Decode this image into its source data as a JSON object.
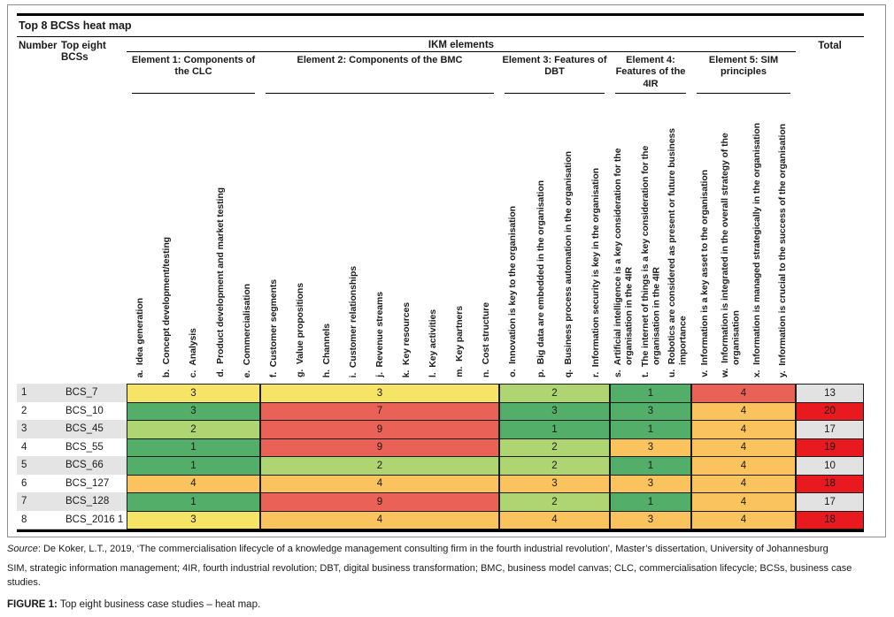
{
  "header": {
    "number_label": "Number",
    "bcs_label": "Top eight BCSs",
    "ikm_label": "IKM elements",
    "total_label": "Total"
  },
  "chart_data": {
    "type": "heatmap",
    "title": "Top 8 BCSs heat map",
    "legend_position": "none",
    "column_groups": [
      {
        "label": "Element 1: Components of the CLC",
        "columns": "a-e"
      },
      {
        "label": "Element 2: Components of the BMC",
        "columns": "f-n"
      },
      {
        "label": "Element 3: Features of DBT",
        "columns": "o-r"
      },
      {
        "label": "Element 4: Features of the 4IR",
        "columns": "s-u"
      },
      {
        "label": "Element 5: SIM principles",
        "columns": "v-y"
      }
    ],
    "columns": [
      "a.  Idea generation",
      "b.  Concept development/testing",
      "c.  Analysis",
      "d.  Product development and market testing",
      "e.  Commercialisation",
      "f.  Customer segments",
      "g.  Value propositions",
      "h.  Channels",
      "i.  Customer relationships",
      "j.  Revenue streams",
      "k.  Key resources",
      "l.  Key activities",
      "m.  Key partners",
      "n.  Cost structure",
      "o.  Innovation is key to the organisation",
      "p.  Big data are embedded in the organisation",
      "q.  Business process automation in the organisation",
      "r.  Information security is key in the organisation",
      "s.  Artificial intelligence is a key consideration for the organisation in the 4IR",
      "t.  The internet of things is a key consideration for the organisation in the 4IR",
      "u.  Robotics are considered as present or future business importance",
      "v.  Information is a key asset to the organisation",
      "w.  Information is integrated in the overall strategy of the organisation",
      "x.  Information is managed strategically in the organisation",
      "y.  Information is crucial to the success of the organisation"
    ],
    "palette": {
      "green": "#53AE6A",
      "light_green": "#AFD472",
      "yellow": "#F6E467",
      "orange": "#FAC35D",
      "salmon": "#EA6157",
      "total_red": "#E8191F",
      "total_grey": "#E2E2E2",
      "zebra_grey": "#E4E4E4",
      "white": "#FFFFFF"
    },
    "rows": [
      {
        "number": "1",
        "name": "BCS_7",
        "row_bg": "#E4E4E4",
        "cells": [
          {
            "v": "3",
            "bg": "#F6E467"
          },
          {
            "v": "3",
            "bg": "#F6E467"
          },
          {
            "v": "2",
            "bg": "#AFD472"
          },
          {
            "v": "1",
            "bg": "#53AE6A"
          },
          {
            "v": "4",
            "bg": "#EA6157"
          }
        ],
        "total": {
          "v": "13",
          "bg": "#E2E2E2"
        }
      },
      {
        "number": "2",
        "name": "BCS_10",
        "row_bg": "#FFFFFF",
        "cells": [
          {
            "v": "3",
            "bg": "#53AE6A"
          },
          {
            "v": "7",
            "bg": "#EA6157"
          },
          {
            "v": "3",
            "bg": "#53AE6A"
          },
          {
            "v": "3",
            "bg": "#53AE6A"
          },
          {
            "v": "4",
            "bg": "#FAC35D"
          }
        ],
        "total": {
          "v": "20",
          "bg": "#E8191F"
        }
      },
      {
        "number": "3",
        "name": "BCS_45",
        "row_bg": "#E4E4E4",
        "cells": [
          {
            "v": "2",
            "bg": "#AFD472"
          },
          {
            "v": "9",
            "bg": "#EA6157"
          },
          {
            "v": "1",
            "bg": "#53AE6A"
          },
          {
            "v": "1",
            "bg": "#53AE6A"
          },
          {
            "v": "4",
            "bg": "#FAC35D"
          }
        ],
        "total": {
          "v": "17",
          "bg": "#E2E2E2"
        }
      },
      {
        "number": "4",
        "name": "BCS_55",
        "row_bg": "#FFFFFF",
        "cells": [
          {
            "v": "1",
            "bg": "#53AE6A"
          },
          {
            "v": "9",
            "bg": "#EA6157"
          },
          {
            "v": "2",
            "bg": "#AFD472"
          },
          {
            "v": "3",
            "bg": "#FAC35D"
          },
          {
            "v": "4",
            "bg": "#FAC35D"
          }
        ],
        "total": {
          "v": "19",
          "bg": "#E8191F"
        }
      },
      {
        "number": "5",
        "name": "BCS_66",
        "row_bg": "#E4E4E4",
        "cells": [
          {
            "v": "1",
            "bg": "#53AE6A"
          },
          {
            "v": "2",
            "bg": "#AFD472"
          },
          {
            "v": "2",
            "bg": "#AFD472"
          },
          {
            "v": "1",
            "bg": "#53AE6A"
          },
          {
            "v": "4",
            "bg": "#FAC35D"
          }
        ],
        "total": {
          "v": "10",
          "bg": "#E2E2E2"
        }
      },
      {
        "number": "6",
        "name": "BCS_127",
        "row_bg": "#FFFFFF",
        "cells": [
          {
            "v": "4",
            "bg": "#FAC35D"
          },
          {
            "v": "4",
            "bg": "#FAC35D"
          },
          {
            "v": "3",
            "bg": "#FAC35D"
          },
          {
            "v": "3",
            "bg": "#FAC35D"
          },
          {
            "v": "4",
            "bg": "#FAC35D"
          }
        ],
        "total": {
          "v": "18",
          "bg": "#E8191F"
        }
      },
      {
        "number": "7",
        "name": "BCS_128",
        "row_bg": "#E4E4E4",
        "cells": [
          {
            "v": "1",
            "bg": "#53AE6A"
          },
          {
            "v": "9",
            "bg": "#EA6157"
          },
          {
            "v": "2",
            "bg": "#AFD472"
          },
          {
            "v": "1",
            "bg": "#53AE6A"
          },
          {
            "v": "4",
            "bg": "#FAC35D"
          }
        ],
        "total": {
          "v": "17",
          "bg": "#E2E2E2"
        }
      },
      {
        "number": "8",
        "name": "BCS_2016 1",
        "row_bg": "#FFFFFF",
        "cells": [
          {
            "v": "3",
            "bg": "#F6E467"
          },
          {
            "v": "4",
            "bg": "#FAC35D"
          },
          {
            "v": "4",
            "bg": "#FAC35D"
          },
          {
            "v": "3",
            "bg": "#FAC35D"
          },
          {
            "v": "4",
            "bg": "#FAC35D"
          }
        ],
        "total": {
          "v": "18",
          "bg": "#E8191F"
        }
      }
    ]
  },
  "footnote": {
    "source_label": "Source",
    "source_text": ": De Koker, L.T., 2019, ‘The commercialisation lifecycle of a knowledge management consulting firm in the fourth industrial revolution’, Master’s dissertation, University of Johannesburg",
    "abbreviations": "SIM, strategic information management; 4IR, fourth industrial revolution; DBT, digital business transformation; BMC, business model canvas; CLC, commercialisation lifecycle; BCSs, business case studies.",
    "figure_label": "FIGURE 1:",
    "figure_caption": " Top eight business case studies – heat map."
  }
}
